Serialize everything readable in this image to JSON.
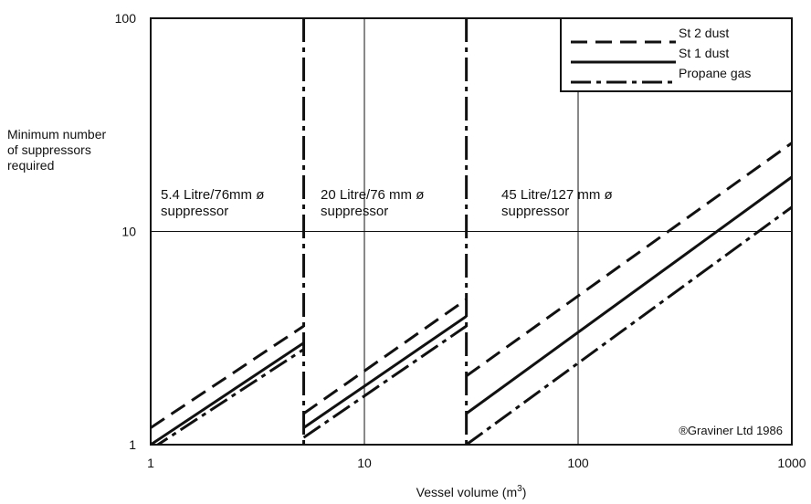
{
  "chart_data": {
    "type": "line",
    "x_scale": "log",
    "y_scale": "log",
    "xlim": [
      1,
      1000
    ],
    "ylim": [
      1,
      100
    ],
    "xticks": [
      "1",
      "10",
      "100",
      "1000"
    ],
    "yticks": [
      "100",
      "10",
      "1"
    ],
    "xlabel": "Vessel volume (m",
    "xlabel_sup": "3",
    "xlabel_close": ")",
    "ylabel_lines": [
      "Minimum number",
      "of suppressors",
      "required"
    ],
    "grid": true,
    "legend_position": "top-right",
    "colors": {
      "line": "#111111",
      "background": "#ffffff"
    },
    "boundaries": [
      5.2,
      30
    ],
    "regions": [
      {
        "label_lines": [
          "5.4 Litre/76mm ø",
          "suppressor"
        ],
        "x_range": [
          1,
          5.2
        ]
      },
      {
        "label_lines": [
          "20 Litre/76 mm ø",
          "suppressor"
        ],
        "x_range": [
          5.2,
          30
        ]
      },
      {
        "label_lines": [
          "45 Litre/127 mm ø",
          "suppressor"
        ],
        "x_range": [
          30,
          1000
        ]
      }
    ],
    "series": [
      {
        "name": "St 2 dust",
        "style": "dashed",
        "segments": [
          [
            [
              1,
              1.2
            ],
            [
              5.2,
              3.6
            ]
          ],
          [
            [
              5.2,
              1.4
            ],
            [
              30,
              4.8
            ]
          ],
          [
            [
              30,
              2.1
            ],
            [
              1000,
              26
            ]
          ]
        ]
      },
      {
        "name": "St 1 dust",
        "style": "solid",
        "segments": [
          [
            [
              1,
              1.0
            ],
            [
              5.2,
              3.0
            ]
          ],
          [
            [
              5.2,
              1.2
            ],
            [
              30,
              4.0
            ]
          ],
          [
            [
              30,
              1.4
            ],
            [
              1000,
              18
            ]
          ]
        ]
      },
      {
        "name": "Propane gas",
        "style": "dash-dot",
        "segments": [
          [
            [
              1,
              0.95
            ],
            [
              5.2,
              2.8
            ]
          ],
          [
            [
              5.2,
              1.08
            ],
            [
              30,
              3.6
            ]
          ],
          [
            [
              30,
              1.0
            ],
            [
              1000,
              13
            ]
          ]
        ]
      }
    ],
    "annotation": "®Graviner Ltd 1986"
  }
}
